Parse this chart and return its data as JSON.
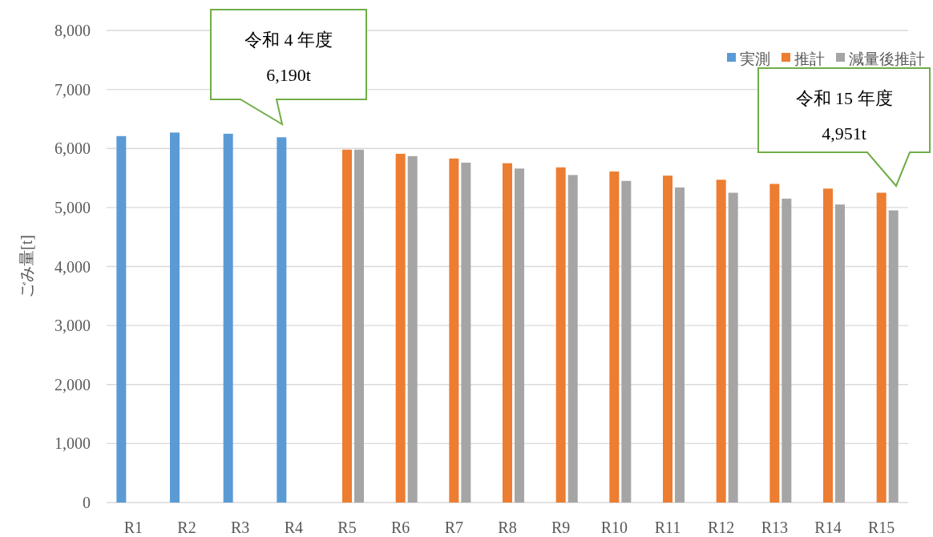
{
  "chart_data": {
    "type": "bar",
    "ylabel": "ごみ量[t]",
    "categories": [
      "R1",
      "R2",
      "R3",
      "R4",
      "R5",
      "R6",
      "R7",
      "R8",
      "R9",
      "R10",
      "R11",
      "R12",
      "R13",
      "R14",
      "R15"
    ],
    "series": [
      {
        "name": "実測",
        "color": "#5b9bd5",
        "values": [
          6210,
          6270,
          6250,
          6190,
          null,
          null,
          null,
          null,
          null,
          null,
          null,
          null,
          null,
          null,
          null
        ]
      },
      {
        "name": "推計",
        "color": "#ed7d31",
        "values": [
          null,
          null,
          null,
          null,
          5980,
          5910,
          5830,
          5750,
          5680,
          5610,
          5540,
          5470,
          5400,
          5320,
          5250
        ]
      },
      {
        "name": "減量後推計",
        "color": "#a5a5a5",
        "values": [
          null,
          null,
          null,
          null,
          5980,
          5870,
          5760,
          5660,
          5550,
          5450,
          5340,
          5250,
          5150,
          5050,
          4951
        ]
      }
    ],
    "ylim": [
      0,
      8000
    ],
    "yticks": [
      0,
      {
        "value": 1000,
        "label": "1,000"
      },
      {
        "value": 2000,
        "label": "2,000"
      },
      {
        "value": 3000,
        "label": "3,000"
      },
      {
        "value": 4000,
        "label": "4,000"
      },
      {
        "value": 5000,
        "label": "5,000"
      },
      {
        "value": 6000,
        "label": "6,000"
      },
      {
        "value": 7000,
        "label": "7,000"
      },
      {
        "value": 8000,
        "label": "8,000"
      }
    ],
    "grid": "y",
    "legend": "top right",
    "annotations": [
      "令和 4 年度\n6,190t",
      "令和 15 年度\n4,951t"
    ]
  }
}
